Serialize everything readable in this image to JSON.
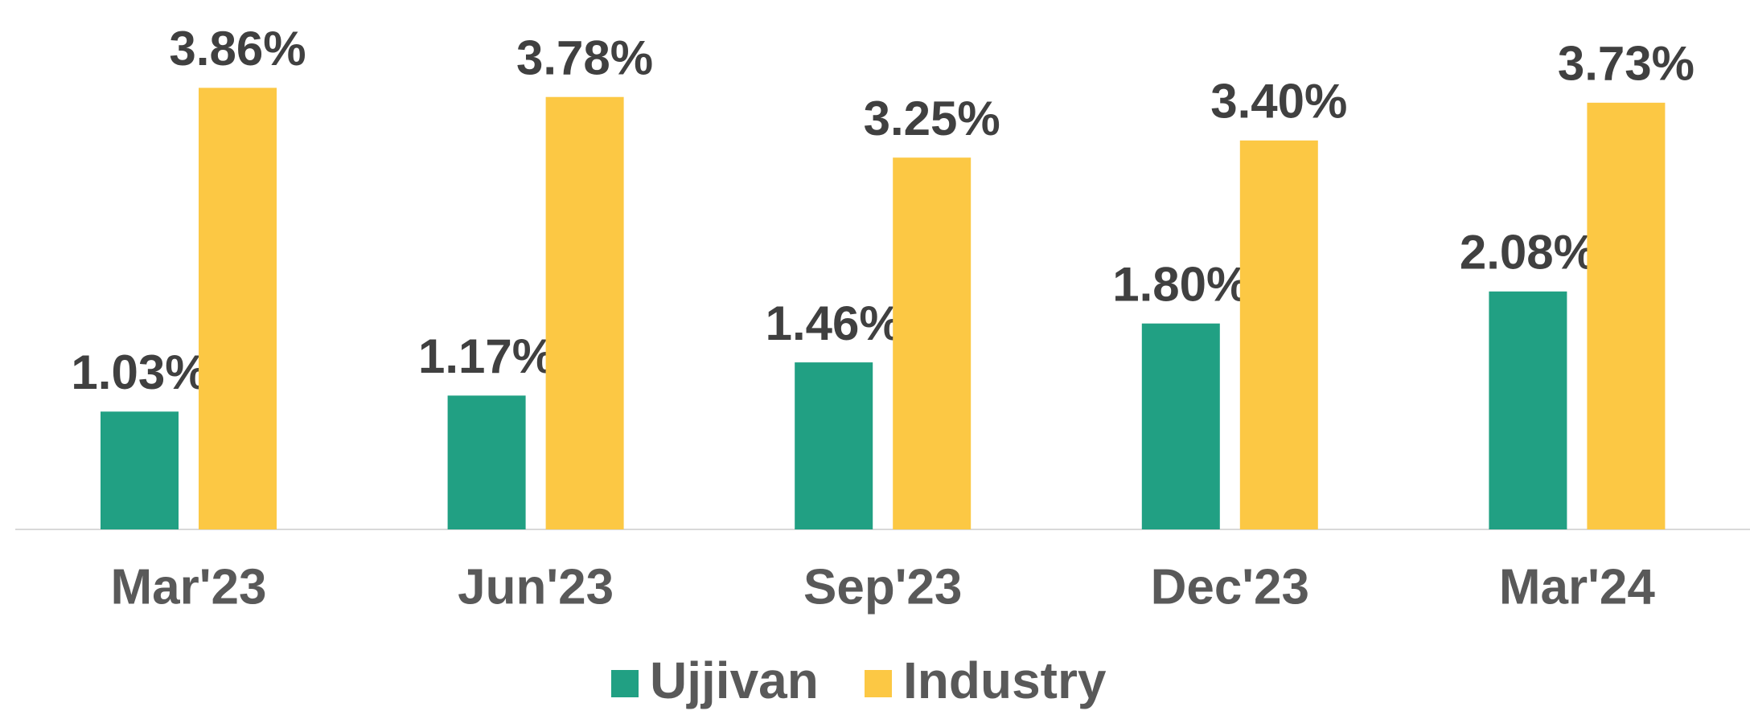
{
  "chart_data": {
    "type": "bar",
    "categories": [
      "Mar'23",
      "Jun'23",
      "Sep'23",
      "Dec'23",
      "Mar'24"
    ],
    "series": [
      {
        "name": "Ujjivan",
        "color": "#21a083",
        "values": [
          1.03,
          1.17,
          1.46,
          1.8,
          2.08
        ],
        "value_labels": [
          "1.03%",
          "1.17%",
          "1.46%",
          "1.80%",
          "2.08%"
        ]
      },
      {
        "name": "Industry",
        "color": "#fcc844",
        "values": [
          3.86,
          3.78,
          3.25,
          3.4,
          3.73
        ],
        "value_labels": [
          "3.86%",
          "3.78%",
          "3.25%",
          "3.40%",
          "3.73%"
        ]
      }
    ],
    "legend": "bottom"
  }
}
